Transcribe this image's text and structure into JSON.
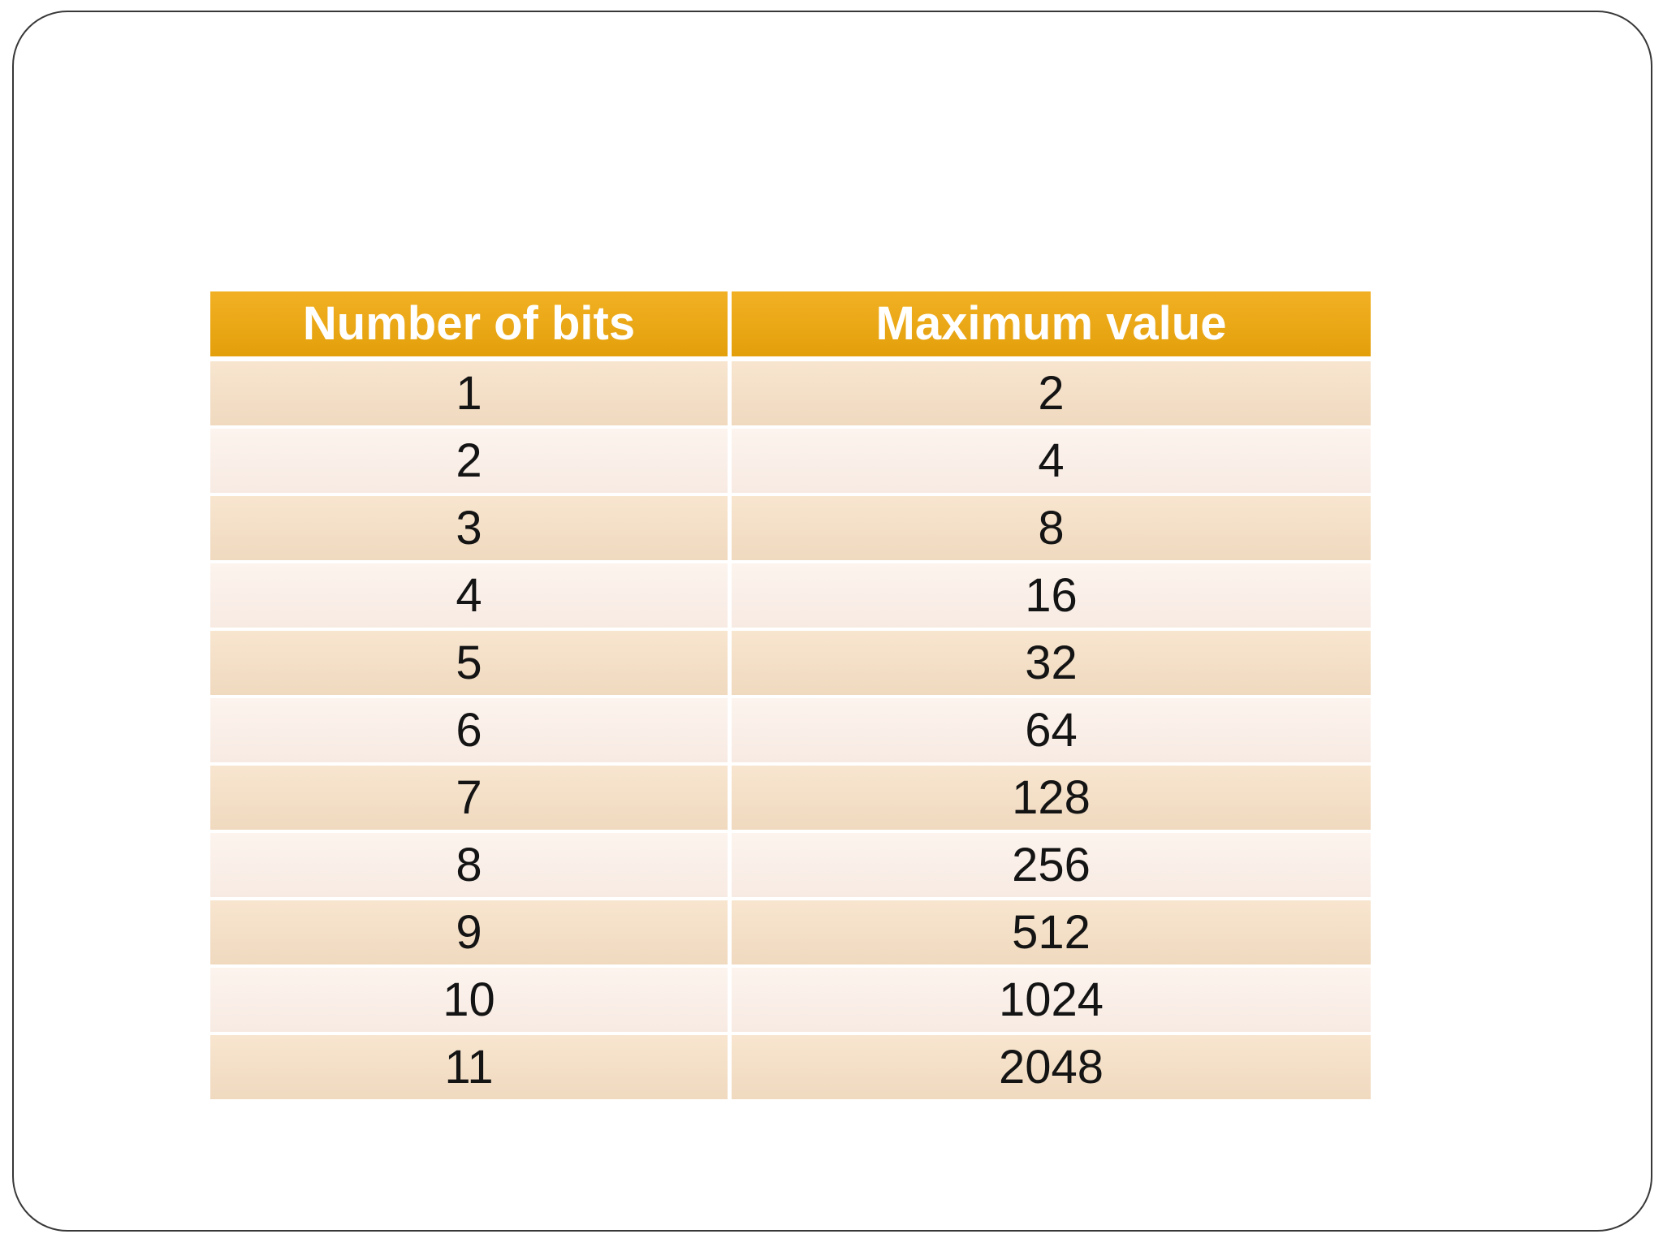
{
  "slide": {
    "table": {
      "headers": [
        "Number of bits",
        "Maximum value"
      ],
      "rows": [
        {
          "bits": "1",
          "max": "2"
        },
        {
          "bits": "2",
          "max": "4"
        },
        {
          "bits": "3",
          "max": "8"
        },
        {
          "bits": "4",
          "max": "16"
        },
        {
          "bits": "5",
          "max": "32"
        },
        {
          "bits": "6",
          "max": "64"
        },
        {
          "bits": "7",
          "max": "128"
        },
        {
          "bits": "8",
          "max": "256"
        },
        {
          "bits": "9",
          "max": "512"
        },
        {
          "bits": "10",
          "max": "1024"
        },
        {
          "bits": "11",
          "max": "2048"
        }
      ]
    },
    "colors": {
      "background": "#FFFFFF",
      "page_border": "#383838",
      "header_bg": "#F0A80B",
      "header_text": "#FFFFFF",
      "row_dark_bg": "#F7E0C5",
      "row_light_bg": "#FCEFE7",
      "cell_text": "#141414"
    }
  }
}
